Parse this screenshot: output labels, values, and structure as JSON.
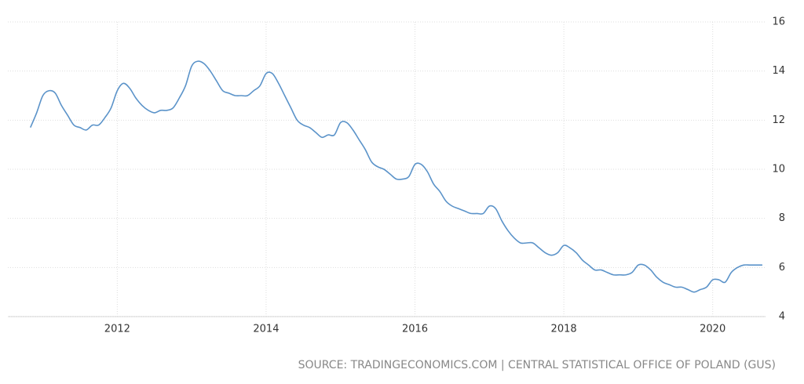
{
  "chart_data": {
    "type": "line",
    "x": [
      2010.833,
      2010.917,
      2011,
      2011.083,
      2011.167,
      2011.25,
      2011.333,
      2011.417,
      2011.5,
      2011.583,
      2011.667,
      2011.75,
      2011.833,
      2011.917,
      2012,
      2012.083,
      2012.167,
      2012.25,
      2012.333,
      2012.417,
      2012.5,
      2012.583,
      2012.667,
      2012.75,
      2012.833,
      2012.917,
      2013,
      2013.083,
      2013.167,
      2013.25,
      2013.333,
      2013.417,
      2013.5,
      2013.583,
      2013.667,
      2013.75,
      2013.833,
      2013.917,
      2014,
      2014.083,
      2014.167,
      2014.25,
      2014.333,
      2014.417,
      2014.5,
      2014.583,
      2014.667,
      2014.75,
      2014.833,
      2014.917,
      2015,
      2015.083,
      2015.167,
      2015.25,
      2015.333,
      2015.417,
      2015.5,
      2015.583,
      2015.667,
      2015.75,
      2015.833,
      2015.917,
      2016,
      2016.083,
      2016.167,
      2016.25,
      2016.333,
      2016.417,
      2016.5,
      2016.583,
      2016.667,
      2016.75,
      2016.833,
      2016.917,
      2017,
      2017.083,
      2017.167,
      2017.25,
      2017.333,
      2017.417,
      2017.5,
      2017.583,
      2017.667,
      2017.75,
      2017.833,
      2017.917,
      2018,
      2018.083,
      2018.167,
      2018.25,
      2018.333,
      2018.417,
      2018.5,
      2018.583,
      2018.667,
      2018.75,
      2018.833,
      2018.917,
      2019,
      2019.083,
      2019.167,
      2019.25,
      2019.333,
      2019.417,
      2019.5,
      2019.583,
      2019.667,
      2019.75,
      2019.833,
      2019.917,
      2020,
      2020.083,
      2020.167,
      2020.25,
      2020.333,
      2020.417,
      2020.5,
      2020.583,
      2020.667
    ],
    "series": [
      {
        "color": "#5b93c9",
        "values": [
          11.7,
          12.3,
          13.0,
          13.2,
          13.1,
          12.6,
          12.2,
          11.8,
          11.7,
          11.6,
          11.8,
          11.8,
          12.1,
          12.5,
          13.2,
          13.5,
          13.3,
          12.9,
          12.6,
          12.4,
          12.3,
          12.4,
          12.4,
          12.5,
          12.9,
          13.4,
          14.2,
          14.4,
          14.3,
          14.0,
          13.6,
          13.2,
          13.1,
          13.0,
          13.0,
          13.0,
          13.2,
          13.4,
          13.9,
          13.9,
          13.5,
          13.0,
          12.5,
          12.0,
          11.8,
          11.7,
          11.5,
          11.3,
          11.4,
          11.4,
          11.9,
          11.9,
          11.6,
          11.2,
          10.8,
          10.3,
          10.1,
          10.0,
          9.8,
          9.6,
          9.6,
          9.7,
          10.2,
          10.2,
          9.9,
          9.4,
          9.1,
          8.7,
          8.5,
          8.4,
          8.3,
          8.2,
          8.2,
          8.2,
          8.5,
          8.4,
          7.9,
          7.5,
          7.2,
          7.0,
          7.0,
          7.0,
          6.8,
          6.6,
          6.5,
          6.6,
          6.9,
          6.8,
          6.6,
          6.3,
          6.1,
          5.9,
          5.9,
          5.8,
          5.7,
          5.7,
          5.7,
          5.8,
          6.1,
          6.1,
          5.9,
          5.6,
          5.4,
          5.3,
          5.2,
          5.2,
          5.1,
          5.0,
          5.1,
          5.2,
          5.5,
          5.5,
          5.4,
          5.8,
          6.0,
          6.1,
          6.1,
          6.1,
          6.1
        ]
      }
    ],
    "xlim": [
      2010.53,
      2020.71
    ],
    "xticks": [
      2012,
      2014,
      2016,
      2018,
      2020
    ],
    "ylim": [
      4,
      16
    ],
    "yticks": [
      4,
      6,
      8,
      10,
      12,
      14,
      16
    ],
    "grid": true,
    "source": "SOURCE: TRADINGECONOMICS.COM | CENTRAL STATISTICAL OFFICE OF POLAND (GUS)"
  }
}
